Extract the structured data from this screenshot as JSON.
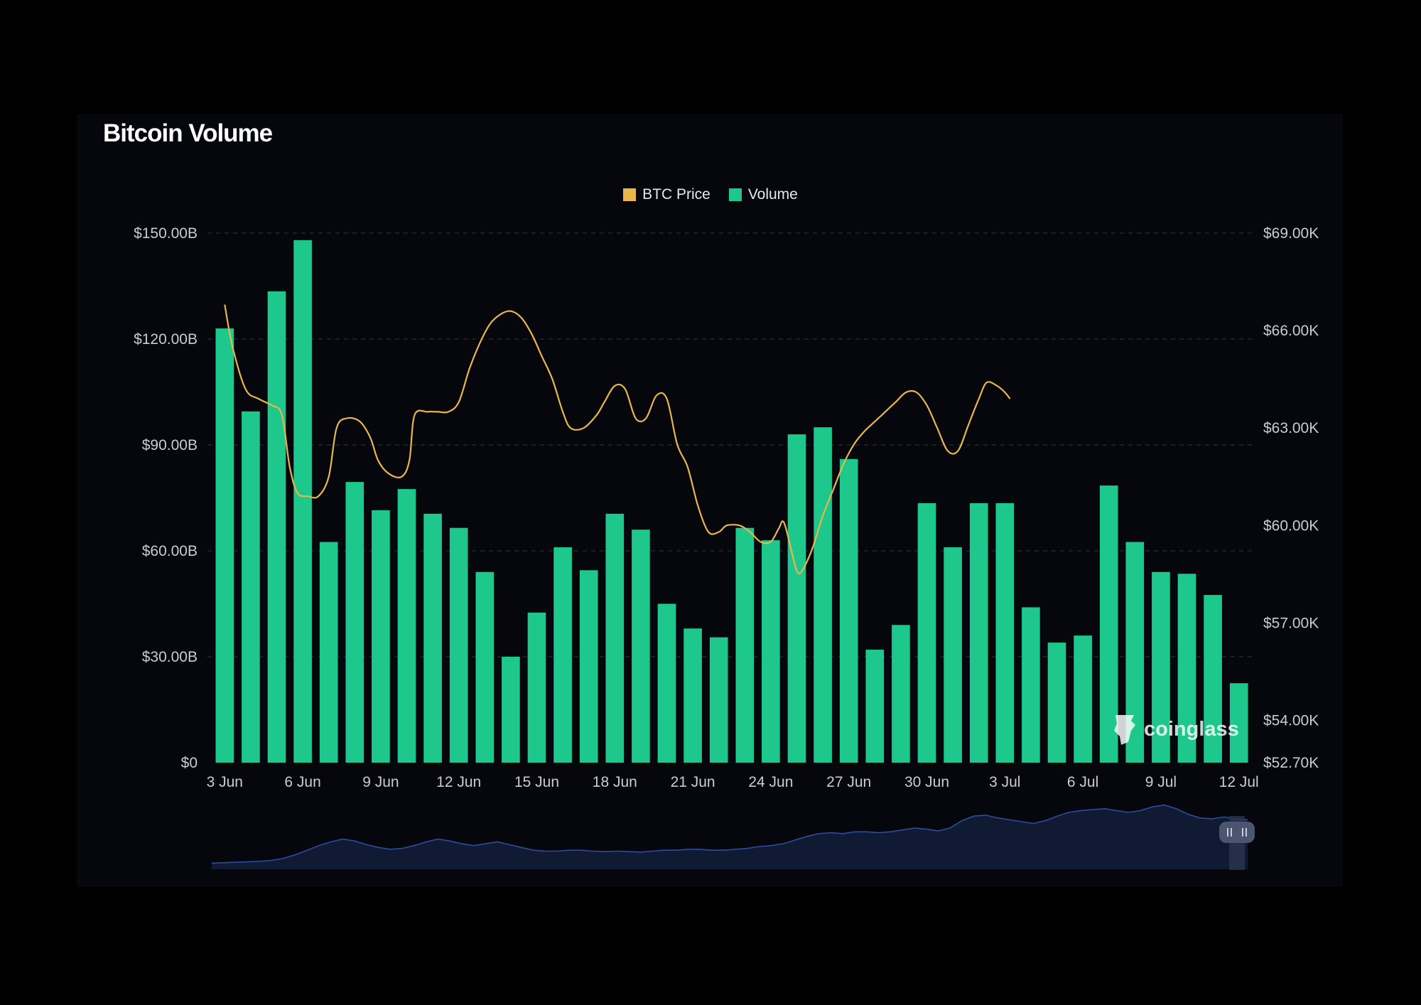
{
  "title": "Bitcoin Volume",
  "watermark": "coinglass",
  "colors": {
    "background": "#000000",
    "panel": "#05070d",
    "price": "#e8b64c",
    "volume": "#1ec88c",
    "grid": "#2a3a3a",
    "axis_text": "#c9ccd3",
    "navigator_fill": "#111a33",
    "navigator_line": "#2d4c9e"
  },
  "chart_data": {
    "type": "bar",
    "title": "Bitcoin Volume",
    "legend": [
      "BTC Price",
      "Volume"
    ],
    "legend_position": "top-center",
    "grid": true,
    "categories": [
      "3 Jun",
      "4 Jun",
      "5 Jun",
      "6 Jun",
      "7 Jun",
      "8 Jun",
      "9 Jun",
      "10 Jun",
      "11 Jun",
      "12 Jun",
      "13 Jun",
      "14 Jun",
      "15 Jun",
      "16 Jun",
      "17 Jun",
      "18 Jun",
      "19 Jun",
      "20 Jun",
      "21 Jun",
      "22 Jun",
      "23 Jun",
      "24 Jun",
      "25 Jun",
      "26 Jun",
      "27 Jun",
      "28 Jun",
      "29 Jun",
      "30 Jun",
      "1 Jul",
      "2 Jul",
      "3 Jul",
      "4 Jul",
      "5 Jul",
      "6 Jul",
      "7 Jul",
      "8 Jul",
      "9 Jul",
      "10 Jul",
      "11 Jul",
      "12 Jul"
    ],
    "x_tick_labels": [
      "3 Jun",
      "6 Jun",
      "9 Jun",
      "12 Jun",
      "15 Jun",
      "18 Jun",
      "21 Jun",
      "24 Jun",
      "27 Jun",
      "30 Jun",
      "3 Jul",
      "6 Jul",
      "9 Jul",
      "12 Jul"
    ],
    "series": [
      {
        "name": "Volume",
        "type": "bar",
        "axis": "left",
        "values": [
          123,
          99.5,
          133.5,
          148,
          62.5,
          79.5,
          71.5,
          77.5,
          70.5,
          66.5,
          54,
          30,
          42.5,
          61,
          54.5,
          70.5,
          66,
          45,
          38,
          35.5,
          66.5,
          63,
          93,
          95,
          86,
          32,
          39,
          73.5,
          61,
          73.5,
          73.5,
          44,
          34,
          36,
          78.5,
          62.5,
          54,
          53.5,
          47.5,
          22.5
        ]
      },
      {
        "name": "BTC Price",
        "type": "line",
        "axis": "right",
        "points": [
          [
            0,
            66.8
          ],
          [
            0.3,
            65.5
          ],
          [
            0.8,
            64.2
          ],
          [
            1.3,
            63.9
          ],
          [
            1.8,
            63.7
          ],
          [
            2.2,
            63.4
          ],
          [
            2.5,
            61.8
          ],
          [
            2.8,
            61.0
          ],
          [
            3.2,
            60.9
          ],
          [
            3.6,
            60.9
          ],
          [
            4.0,
            61.5
          ],
          [
            4.3,
            63.0
          ],
          [
            4.7,
            63.3
          ],
          [
            5.2,
            63.2
          ],
          [
            5.6,
            62.7
          ],
          [
            5.9,
            62.0
          ],
          [
            6.3,
            61.6
          ],
          [
            6.8,
            61.5
          ],
          [
            7.1,
            62.0
          ],
          [
            7.3,
            63.4
          ],
          [
            7.8,
            63.5
          ],
          [
            8.2,
            63.5
          ],
          [
            8.6,
            63.5
          ],
          [
            9.0,
            63.8
          ],
          [
            9.4,
            64.8
          ],
          [
            9.8,
            65.6
          ],
          [
            10.2,
            66.2
          ],
          [
            10.6,
            66.5
          ],
          [
            11.0,
            66.6
          ],
          [
            11.4,
            66.4
          ],
          [
            11.8,
            65.9
          ],
          [
            12.2,
            65.2
          ],
          [
            12.6,
            64.5
          ],
          [
            13.0,
            63.5
          ],
          [
            13.3,
            63.0
          ],
          [
            13.8,
            63.0
          ],
          [
            14.3,
            63.4
          ],
          [
            14.6,
            63.8
          ],
          [
            15.0,
            64.3
          ],
          [
            15.4,
            64.2
          ],
          [
            15.8,
            63.3
          ],
          [
            16.2,
            63.3
          ],
          [
            16.6,
            64.0
          ],
          [
            17.0,
            63.9
          ],
          [
            17.4,
            62.5
          ],
          [
            17.8,
            61.8
          ],
          [
            18.2,
            60.6
          ],
          [
            18.6,
            59.8
          ],
          [
            19.0,
            59.8
          ],
          [
            19.3,
            60.0
          ],
          [
            19.8,
            60.0
          ],
          [
            20.2,
            59.8
          ],
          [
            20.6,
            59.5
          ],
          [
            21.0,
            59.5
          ],
          [
            21.3,
            59.9
          ],
          [
            21.5,
            60.1
          ],
          [
            21.8,
            59.2
          ],
          [
            22.0,
            58.6
          ],
          [
            22.2,
            58.6
          ],
          [
            22.6,
            59.3
          ],
          [
            23.0,
            60.3
          ],
          [
            23.4,
            61.1
          ],
          [
            23.8,
            61.9
          ],
          [
            24.2,
            62.5
          ],
          [
            24.6,
            62.9
          ],
          [
            25.0,
            63.2
          ],
          [
            25.4,
            63.5
          ],
          [
            25.8,
            63.8
          ],
          [
            26.2,
            64.1
          ],
          [
            26.6,
            64.1
          ],
          [
            27.0,
            63.7
          ],
          [
            27.4,
            63.0
          ],
          [
            27.8,
            62.3
          ],
          [
            28.2,
            62.3
          ],
          [
            28.6,
            63.1
          ],
          [
            29.0,
            63.9
          ],
          [
            29.3,
            64.4
          ],
          [
            29.7,
            64.3
          ],
          [
            30.0,
            64.1
          ],
          [
            30.2,
            63.9
          ]
        ]
      }
    ],
    "y_left": {
      "label": "",
      "ticks": [
        "$0",
        "$30.00B",
        "$60.00B",
        "$90.00B",
        "$120.00B",
        "$150.00B"
      ],
      "range": [
        0,
        150
      ]
    },
    "y_right": {
      "label": "",
      "ticks": [
        "$52.70K",
        "$54.00K",
        "$57.00K",
        "$60.00K",
        "$63.00K",
        "$66.00K",
        "$69.00K"
      ],
      "range": [
        52.7,
        69
      ]
    },
    "navigator": {
      "values": [
        52.7,
        52.75,
        52.8,
        52.85,
        52.9,
        53.0,
        53.2,
        53.6,
        54.1,
        54.6,
        55.0,
        55.3,
        55.1,
        54.7,
        54.4,
        54.2,
        54.3,
        54.6,
        55.0,
        55.3,
        55.1,
        54.8,
        54.6,
        54.8,
        55.0,
        54.7,
        54.4,
        54.1,
        54.0,
        54.0,
        54.1,
        54.1,
        54.0,
        53.95,
        54.0,
        53.95,
        53.9,
        54.0,
        54.1,
        54.1,
        54.2,
        54.2,
        54.1,
        54.1,
        54.2,
        54.3,
        54.5,
        54.6,
        54.8,
        55.2,
        55.6,
        55.9,
        56.0,
        55.9,
        56.1,
        56.1,
        56.0,
        56.1,
        56.3,
        56.5,
        56.4,
        56.2,
        56.5,
        57.3,
        57.8,
        57.9,
        57.6,
        57.4,
        57.2,
        57.0,
        57.3,
        57.8,
        58.2,
        58.4,
        58.5,
        58.6,
        58.4,
        58.2,
        58.4,
        58.8,
        59.0,
        58.6,
        58.0,
        57.6,
        57.5,
        57.7,
        57.5,
        57.4
      ]
    }
  }
}
